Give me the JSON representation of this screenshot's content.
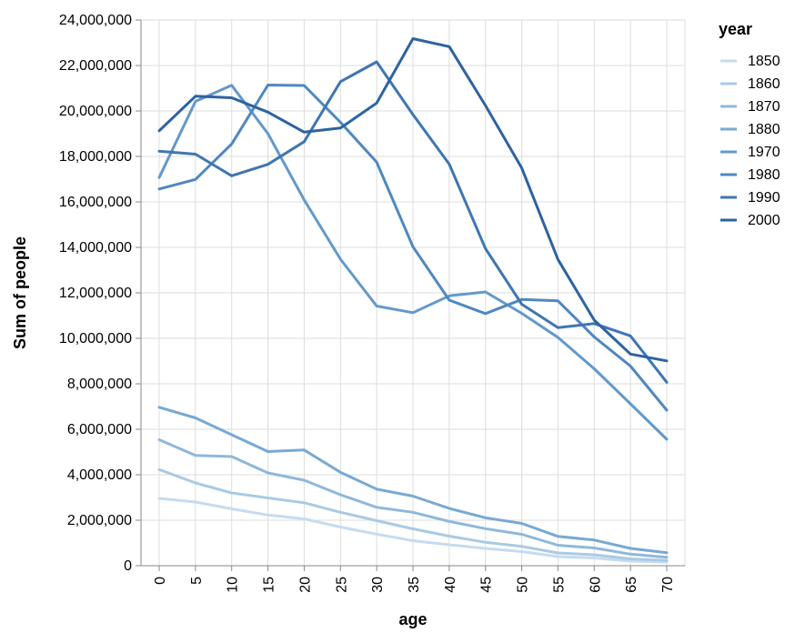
{
  "chart_data": {
    "type": "line",
    "xlabel": "age",
    "ylabel": "Sum of people",
    "x": [
      0,
      5,
      10,
      15,
      20,
      25,
      30,
      35,
      40,
      45,
      50,
      55,
      60,
      65,
      70
    ],
    "x_ticks": [
      "0",
      "5",
      "10",
      "15",
      "20",
      "25",
      "30",
      "35",
      "40",
      "45",
      "50",
      "55",
      "60",
      "65",
      "70"
    ],
    "ylim": [
      0,
      24000000
    ],
    "y_ticks": [
      0,
      2000000,
      4000000,
      6000000,
      8000000,
      10000000,
      12000000,
      14000000,
      16000000,
      18000000,
      20000000,
      22000000,
      24000000
    ],
    "y_tick_labels": [
      "0",
      "2,000,000",
      "4,000,000",
      "6,000,000",
      "8,000,000",
      "10,000,000",
      "12,000,000",
      "14,000,000",
      "16,000,000",
      "18,000,000",
      "20,000,000",
      "22,000,000",
      "24,000,000"
    ],
    "grid": true,
    "legend": {
      "title": "year",
      "placement": "right"
    },
    "series": [
      {
        "name": "1850",
        "color": "#c6dbef",
        "values": [
          2960000,
          2800000,
          2500000,
          2230000,
          2060000,
          1700000,
          1390000,
          1100000,
          920000,
          760000,
          620000,
          400000,
          340000,
          200000,
          160000
        ]
      },
      {
        "name": "1860",
        "color": "#aacae4",
        "values": [
          4230000,
          3640000,
          3200000,
          2980000,
          2770000,
          2350000,
          1980000,
          1620000,
          1300000,
          1030000,
          850000,
          560000,
          480000,
          300000,
          230000
        ]
      },
      {
        "name": "1870",
        "color": "#8fb8da",
        "values": [
          5540000,
          4850000,
          4800000,
          4080000,
          3760000,
          3120000,
          2570000,
          2350000,
          1950000,
          1630000,
          1380000,
          900000,
          780000,
          510000,
          370000
        ]
      },
      {
        "name": "1880",
        "color": "#78a9d3",
        "values": [
          6970000,
          6500000,
          5760000,
          5020000,
          5090000,
          4110000,
          3370000,
          3060000,
          2520000,
          2110000,
          1860000,
          1290000,
          1130000,
          760000,
          570000
        ]
      },
      {
        "name": "1970",
        "color": "#6399ca",
        "values": [
          17070000,
          20420000,
          21130000,
          19000000,
          16090000,
          13480000,
          11420000,
          11130000,
          11870000,
          12040000,
          11100000,
          10040000,
          8660000,
          7120000,
          5560000
        ]
      },
      {
        "name": "1980",
        "color": "#4f88c0",
        "values": [
          16570000,
          16990000,
          18550000,
          21140000,
          21120000,
          19500000,
          17750000,
          14030000,
          11680000,
          11090000,
          11710000,
          11650000,
          10060000,
          8780000,
          6840000
        ]
      },
      {
        "name": "1990",
        "color": "#3f76b1",
        "values": [
          18230000,
          18100000,
          17150000,
          17650000,
          18650000,
          21290000,
          22160000,
          19840000,
          17660000,
          13950000,
          11500000,
          10470000,
          10650000,
          10110000,
          8070000
        ]
      },
      {
        "name": "2000",
        "color": "#2d63a0",
        "values": [
          19130000,
          20650000,
          20580000,
          19950000,
          19070000,
          19250000,
          20350000,
          23180000,
          22830000,
          20240000,
          17490000,
          13470000,
          10800000,
          9310000,
          9010000
        ]
      }
    ]
  }
}
